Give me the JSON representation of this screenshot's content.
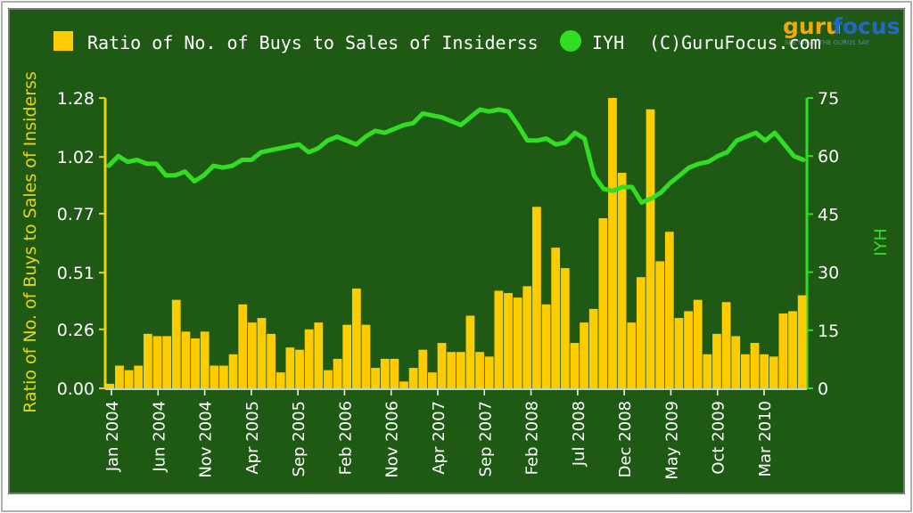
{
  "colors": {
    "background": "#1e5a14",
    "bars": "#ffcc00",
    "line": "#33dd22",
    "left_axis": "#e8d21a",
    "right_axis": "#33dd22",
    "text": "#ffffff"
  },
  "brand": {
    "logo_word_left": "guru",
    "logo_word_right": "focus",
    "tagline": "SEE WHAT THE GURUS SAY"
  },
  "chart_data": {
    "type": "bar+line",
    "legend": {
      "placement": "top-left",
      "bar_label": "Ratio of No. of Buys to Sales of Insiderss",
      "line_label": "IYH",
      "credit": "(C)GuruFocus.com"
    },
    "ylabel_left": "Ratio of No. of Buys to Sales of Insiderss",
    "ylabel_right": "IYH",
    "yticks_left": [
      "1.28",
      "1.02",
      "0.77",
      "0.51",
      "0.26",
      "0.00"
    ],
    "ylim_left": [
      0,
      1.28
    ],
    "yticks_right": [
      "75",
      "60",
      "45",
      "30",
      "15",
      "0"
    ],
    "ylim_right": [
      0,
      75
    ],
    "xticks": [
      "Jan 2004",
      "Jun 2004",
      "Nov 2004",
      "Apr 2005",
      "Sep 2005",
      "Feb 2006",
      "Nov 2006",
      "Apr 2007",
      "Sep 2007",
      "Feb 2008",
      "Jul 2008",
      "Dec 2008",
      "May 2009",
      "Oct 2009",
      "Mar 2010"
    ],
    "grid": false,
    "bars": [
      0.02,
      0.1,
      0.08,
      0.1,
      0.24,
      0.23,
      0.23,
      0.39,
      0.25,
      0.22,
      0.25,
      0.1,
      0.1,
      0.15,
      0.37,
      0.29,
      0.31,
      0.24,
      0.07,
      0.18,
      0.17,
      0.26,
      0.29,
      0.08,
      0.13,
      0.28,
      0.44,
      0.28,
      0.09,
      0.13,
      0.13,
      0.03,
      0.09,
      0.17,
      0.07,
      0.2,
      0.16,
      0.16,
      0.32,
      0.16,
      0.14,
      0.43,
      0.42,
      0.4,
      0.45,
      0.8,
      0.37,
      0.62,
      0.53,
      0.2,
      0.29,
      0.35,
      0.75,
      1.28,
      0.95,
      0.29,
      0.49,
      1.23,
      0.56,
      0.69,
      0.31,
      0.34,
      0.39,
      0.15,
      0.24,
      0.38,
      0.23,
      0.15,
      0.2,
      0.15,
      0.14,
      0.33,
      0.34,
      0.41
    ],
    "line": [
      57.5,
      60,
      58.5,
      59,
      58,
      58,
      55,
      55,
      56,
      53.5,
      55,
      57.5,
      57,
      57.5,
      59,
      59,
      61,
      61.5,
      62,
      62.5,
      63,
      61,
      62,
      64,
      65,
      64,
      63,
      65,
      66.5,
      66,
      67,
      68,
      68.5,
      71,
      70.5,
      70,
      69,
      68,
      70,
      72,
      71.5,
      72,
      71.5,
      68,
      64,
      64,
      64.5,
      63,
      63.5,
      66,
      64.5,
      55,
      51.5,
      51,
      52,
      52,
      48,
      49,
      50.5,
      53,
      55,
      57,
      58,
      58.5,
      60,
      61,
      64,
      65,
      66,
      64,
      66,
      63,
      60,
      59
    ]
  }
}
